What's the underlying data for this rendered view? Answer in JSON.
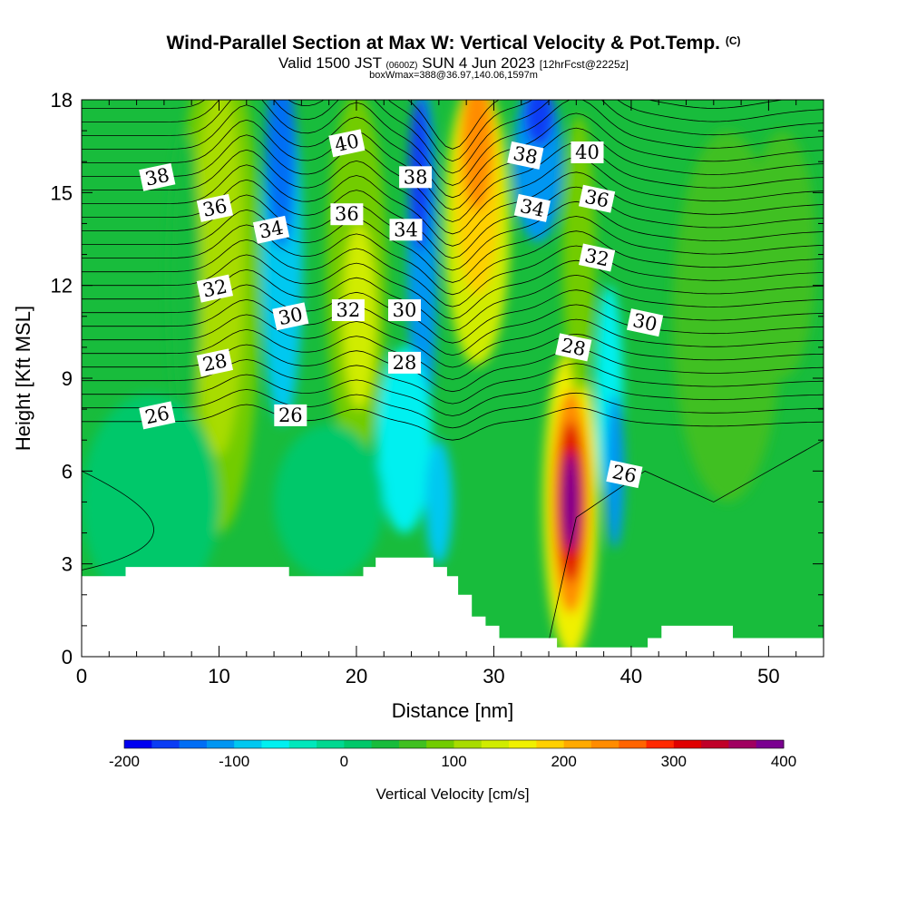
{
  "header": {
    "title": "Wind-Parallel Section at Max W: Vertical Velocity & Pot.Temp.",
    "title_mark": "(C)",
    "valid_prefix": "Valid 1500 JST",
    "valid_zulu": "(0600Z)",
    "valid_date": "SUN 4 Jun 2023",
    "forecast": "[12hrFcst@2225z]",
    "box_info": "boxWmax=388@36.97,140.06,1597m"
  },
  "chart_data": {
    "type": "heatmap",
    "xlabel": "Distance [nm]",
    "ylabel": "Height [Kft MSL]",
    "xlim": [
      0,
      54
    ],
    "ylim": [
      0,
      18
    ],
    "x_ticks": [
      0,
      10,
      20,
      30,
      40,
      50
    ],
    "y_ticks": [
      0,
      3,
      6,
      9,
      12,
      15,
      18
    ],
    "colorbar": {
      "label": "Vertical Velocity [cm/s]",
      "ticks": [
        "-200",
        "-100",
        "0",
        "100",
        "200",
        "300",
        "400"
      ],
      "min": -200,
      "max": 400,
      "step": 25,
      "colors": [
        "#0000f0",
        "#0a3cf4",
        "#006ef5",
        "#0096f2",
        "#00c8f0",
        "#00f0f0",
        "#00e8bc",
        "#00d890",
        "#00c86a",
        "#18bc3c",
        "#40c020",
        "#72cc00",
        "#a8dc00",
        "#d0ec00",
        "#f0f000",
        "#ffd000",
        "#ffaa00",
        "#ff8c00",
        "#ff6400",
        "#ff2800",
        "#e00000",
        "#c00028",
        "#a00060",
        "#7a0090"
      ]
    },
    "wmax_updraft": {
      "x": 35.5,
      "y": 5.0,
      "value": 388
    },
    "theta_contours": {
      "labels": [
        {
          "text": "26",
          "x": 5.5,
          "y": 7.8
        },
        {
          "text": "26",
          "x": 15.2,
          "y": 7.8
        },
        {
          "text": "26",
          "x": 39.5,
          "y": 5.9
        },
        {
          "text": "28",
          "x": 9.7,
          "y": 9.5
        },
        {
          "text": "28",
          "x": 23.5,
          "y": 9.5
        },
        {
          "text": "28",
          "x": 35.8,
          "y": 10.0
        },
        {
          "text": "30",
          "x": 15.2,
          "y": 11.0
        },
        {
          "text": "30",
          "x": 23.5,
          "y": 11.2
        },
        {
          "text": "30",
          "x": 41.0,
          "y": 10.8
        },
        {
          "text": "32",
          "x": 9.7,
          "y": 11.9
        },
        {
          "text": "32",
          "x": 19.4,
          "y": 11.2
        },
        {
          "text": "32",
          "x": 37.5,
          "y": 12.9
        },
        {
          "text": "34",
          "x": 13.8,
          "y": 13.8
        },
        {
          "text": "34",
          "x": 23.6,
          "y": 13.8
        },
        {
          "text": "34",
          "x": 32.8,
          "y": 14.5
        },
        {
          "text": "36",
          "x": 9.7,
          "y": 14.5
        },
        {
          "text": "36",
          "x": 19.3,
          "y": 14.3
        },
        {
          "text": "36",
          "x": 37.5,
          "y": 14.8
        },
        {
          "text": "38",
          "x": 5.5,
          "y": 15.5
        },
        {
          "text": "38",
          "x": 24.3,
          "y": 15.5
        },
        {
          "text": "38",
          "x": 32.3,
          "y": 16.2
        },
        {
          "text": "40",
          "x": 19.3,
          "y": 16.6
        },
        {
          "text": "40",
          "x": 36.8,
          "y": 16.3
        }
      ]
    }
  }
}
